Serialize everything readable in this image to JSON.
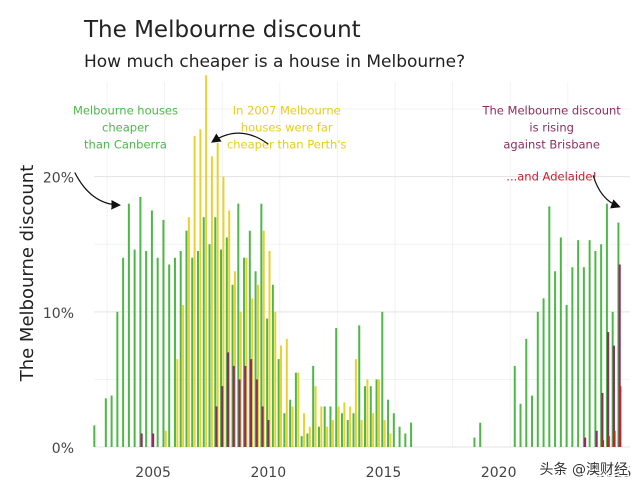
{
  "chart_data": {
    "type": "bar",
    "title": "The Melbourne discount",
    "subtitle": "How much cheaper is a house in Melbourne?",
    "ylabel": "The Melbourne discount",
    "xlabel": "",
    "ylim": [
      0,
      27
    ],
    "xlim": [
      2002.0,
      2025.7
    ],
    "grid": true,
    "x_ticks": [
      {
        "value": 2005,
        "label": "2005"
      },
      {
        "value": 2010,
        "label": "2010"
      },
      {
        "value": 2015,
        "label": "2015"
      },
      {
        "value": 2020,
        "label": "2020"
      },
      {
        "value": 2025,
        "label": "2025"
      }
    ],
    "y_ticks": [
      {
        "value": 0,
        "label": "0%"
      },
      {
        "value": 10,
        "label": "10%"
      },
      {
        "value": 20,
        "label": "20%"
      }
    ],
    "colors": {
      "canberra": "#4db848",
      "perth": "#e8cd1d",
      "brisbane": "#8c2e62",
      "adelaide": "#c8202e",
      "grid": "#e6e6e6",
      "text": "#222222"
    },
    "series": [
      {
        "key": "canberra",
        "x": [
          2002.5,
          2003.0,
          2003.25,
          2003.5,
          2003.75,
          2004.0,
          2004.25,
          2004.5,
          2004.75,
          2005.0,
          2005.25,
          2005.5,
          2005.75,
          2006.0,
          2006.25,
          2006.5,
          2006.75,
          2007.0,
          2007.25,
          2007.5,
          2007.75,
          2008.0,
          2008.25,
          2008.5,
          2008.75,
          2009.0,
          2009.25,
          2009.5,
          2009.75,
          2010.0,
          2010.25,
          2010.5,
          2010.75,
          2011.0,
          2011.25,
          2011.5,
          2011.75,
          2012.0,
          2012.25,
          2012.5,
          2012.75,
          2013.0,
          2013.25,
          2013.5,
          2013.75,
          2014.0,
          2014.25,
          2014.5,
          2014.75,
          2015.0,
          2015.25,
          2015.5,
          2015.75,
          2016.0,
          2016.25,
          2019.0,
          2019.25,
          2020.75,
          2021.0,
          2021.25,
          2021.5,
          2021.75,
          2022.0,
          2022.25,
          2022.5,
          2022.75,
          2023.0,
          2023.25,
          2023.5,
          2023.75,
          2024.0,
          2024.25,
          2024.5,
          2024.75,
          2025.0,
          2025.25
        ],
        "values": [
          1.6,
          3.6,
          3.8,
          10.0,
          14.0,
          18.0,
          14.6,
          18.5,
          14.5,
          17.5,
          14.0,
          16.8,
          13.5,
          14.0,
          14.5,
          16.0,
          14.0,
          14.5,
          17.0,
          15.0,
          17.0,
          14.6,
          15.5,
          12.0,
          18.0,
          14.0,
          16.0,
          13.0,
          18.0,
          9.5,
          12.0,
          6.5,
          2.5,
          3.5,
          5.5,
          0.8,
          1.0,
          6.0,
          1.5,
          3.0,
          3.0,
          8.8,
          2.5,
          2.0,
          2.5,
          9.0,
          4.5,
          4.5,
          5.0,
          10.0,
          3.5,
          2.5,
          1.5,
          1.0,
          1.8,
          0.7,
          1.8,
          6.0,
          3.2,
          8.0,
          3.8,
          10.0,
          11.0,
          17.8,
          13.0,
          15.5,
          10.5,
          13.3,
          15.3,
          13.3,
          15.3,
          14.5,
          15.0,
          18.0,
          10.0,
          16.6
        ]
      },
      {
        "key": "perth",
        "x": [
          2005.5,
          2006.0,
          2006.25,
          2006.5,
          2006.75,
          2007.0,
          2007.25,
          2007.5,
          2007.75,
          2008.0,
          2008.25,
          2008.5,
          2008.75,
          2009.0,
          2009.25,
          2009.5,
          2009.75,
          2010.0,
          2010.25,
          2010.5,
          2010.75,
          2011.0,
          2011.25,
          2011.5,
          2011.75,
          2012.0,
          2012.25,
          2012.5,
          2012.75,
          2013.0,
          2013.25,
          2013.5,
          2013.75,
          2014.0,
          2014.25,
          2014.5,
          2014.75,
          2015.0,
          2015.25
        ],
        "values": [
          1.2,
          6.5,
          10.5,
          17.0,
          23.0,
          23.5,
          27.5,
          21.5,
          22.5,
          20.0,
          17.5,
          13.0,
          10.0,
          14.0,
          11.0,
          12.0,
          16.0,
          14.5,
          10.0,
          7.5,
          8.0,
          3.0,
          5.5,
          2.5,
          1.5,
          4.5,
          3.0,
          1.5,
          2.0,
          3.0,
          3.3,
          3.0,
          6.5,
          2.0,
          5.0,
          2.5,
          5.0,
          2.0,
          1.0
        ]
      },
      {
        "key": "brisbane",
        "x": [
          2004.5,
          2005.0,
          2007.75,
          2008.0,
          2008.25,
          2008.5,
          2008.75,
          2009.0,
          2009.25,
          2009.5,
          2009.75,
          2010.0,
          2023.75,
          2024.25,
          2024.5,
          2024.75,
          2025.0,
          2025.25
        ],
        "values": [
          1.0,
          1.0,
          3.0,
          4.5,
          7.0,
          6.0,
          5.0,
          6.0,
          6.5,
          5.0,
          3.0,
          2.0,
          0.7,
          1.2,
          4.0,
          8.5,
          7.5,
          13.5
        ]
      },
      {
        "key": "adelaide",
        "x": [
          2024.5,
          2024.75,
          2025.0,
          2025.25
        ],
        "values": [
          0.5,
          0.8,
          1.2,
          4.5
        ]
      }
    ],
    "annotations": [
      {
        "lines": [
          "Melbourne houses",
          "cheaper",
          "than Canberra"
        ],
        "color": "#4db848",
        "x": 2003.8,
        "y": 24.6,
        "arrow_from": [
          2001.6,
          20.3
        ],
        "arrow_to": [
          2003.5,
          17.9
        ]
      },
      {
        "lines": [
          "In 2007 Melbourne",
          "houses were far",
          "cheaper than Perth's"
        ],
        "color": "#e8cd1d",
        "x": 2010.8,
        "y": 24.6,
        "arrow_from": [
          2010.0,
          22.4
        ],
        "arrow_to": [
          2007.6,
          22.6
        ]
      },
      {
        "lines": [
          "The Melbourne discount",
          "is rising",
          "against Brisbane"
        ],
        "color": "#8c2e62",
        "x": 2022.3,
        "y": 24.6,
        "arrow_from": null,
        "arrow_to": null
      },
      {
        "lines": [
          "...and Adelaide!"
        ],
        "color": "#c8202e",
        "x": 2022.3,
        "y": 19.7,
        "arrow_from": [
          2024.1,
          20.1
        ],
        "arrow_to": [
          2025.2,
          17.8
        ]
      }
    ]
  },
  "watermark": "头条 @澳财经"
}
